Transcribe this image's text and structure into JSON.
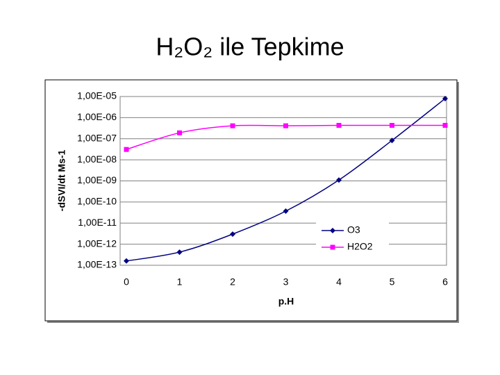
{
  "chart_data": {
    "type": "line",
    "title": "H₂O₂ ile Tepkime",
    "x_label": "p.H",
    "y_label": "-dSVI/dt Ms-1",
    "x": [
      0,
      1,
      2,
      3,
      4,
      5,
      6
    ],
    "xlim": [
      0,
      6
    ],
    "xticks": [
      0,
      1,
      2,
      3,
      4,
      5,
      6
    ],
    "yscale": "log",
    "ylim": [
      1e-13,
      1e-05
    ],
    "yticks": [
      {
        "value": 1e-13,
        "label": "1,00E-13"
      },
      {
        "value": 1e-12,
        "label": "1,00E-12"
      },
      {
        "value": 1e-11,
        "label": "1,00E-11"
      },
      {
        "value": 1e-10,
        "label": "1,00E-10"
      },
      {
        "value": 1e-09,
        "label": "1,00E-09"
      },
      {
        "value": 1e-08,
        "label": "1,00E-08"
      },
      {
        "value": 1e-07,
        "label": "1,00E-07"
      },
      {
        "value": 1e-06,
        "label": "1,00E-06"
      },
      {
        "value": 1e-05,
        "label": "1,00E-05"
      }
    ],
    "grid": true,
    "legend": "lower right",
    "series": [
      {
        "name": "O3",
        "color": "#000080",
        "marker": "diamond",
        "values": [
          1.6e-13,
          4.2e-13,
          3e-12,
          3.7e-11,
          1.1e-09,
          8.3e-08,
          8e-06
        ]
      },
      {
        "name": "H2O2",
        "color": "#ff00ff",
        "marker": "square",
        "values": [
          3.1e-08,
          1.9e-07,
          4.1e-07,
          4.1e-07,
          4.3e-07,
          4.3e-07,
          4.3e-07
        ]
      }
    ]
  }
}
